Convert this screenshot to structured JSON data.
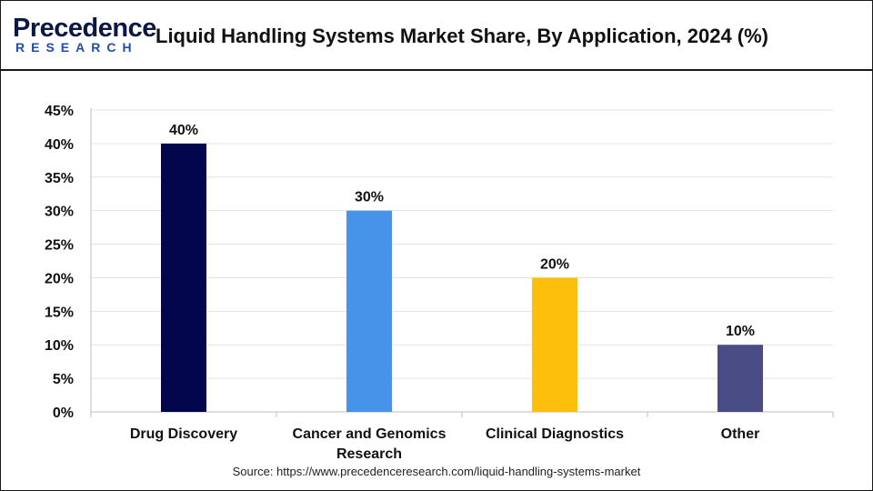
{
  "logo": {
    "main": "Precedence",
    "sub": "RESEARCH"
  },
  "title": "Liquid Handling Systems Market Share, By Application, 2024 (%)",
  "source": "Source: https://www.precedenceresearch.com/liquid-handling-systems-market",
  "chart_data": {
    "type": "bar",
    "categories": [
      "Drug Discovery",
      "Cancer and Genomics Research",
      "Clinical Diagnostics",
      "Other"
    ],
    "category_lines": [
      [
        "Drug Discovery"
      ],
      [
        "Cancer and Genomics",
        "Research"
      ],
      [
        "Clinical Diagnostics"
      ],
      [
        "Other"
      ]
    ],
    "values": [
      40,
      30,
      20,
      10
    ],
    "data_labels": [
      "40%",
      "30%",
      "20%",
      "10%"
    ],
    "bar_colors": [
      "#03054d",
      "#4793ea",
      "#fdbf0b",
      "#4a4c85"
    ],
    "ylim": [
      0,
      45
    ],
    "yticks": [
      0,
      5,
      10,
      15,
      20,
      25,
      30,
      35,
      40,
      45
    ],
    "ytick_labels": [
      "0%",
      "5%",
      "10%",
      "15%",
      "20%",
      "25%",
      "30%",
      "35%",
      "40%",
      "45%"
    ],
    "grid": true,
    "xlabel": "",
    "ylabel": ""
  }
}
